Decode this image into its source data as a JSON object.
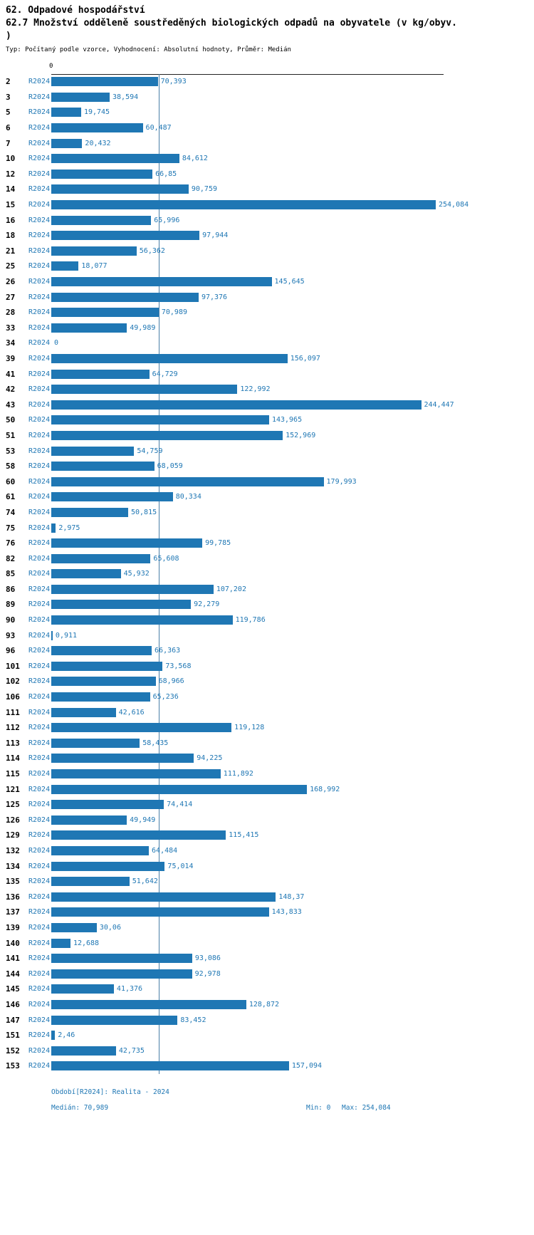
{
  "title": "62. Odpadové hospodářství",
  "subtitle_line1": "62.7 Množství odděleně soustředěných biologických odpadů na obyvatele (v kg/obyv.",
  "subtitle_line2": ")",
  "meta": "Typ: Počítaný podle vzorce, Vyhodnocení: Absolutní hodnoty, Průměr: Medián",
  "axis_zero_label": "0",
  "footer": {
    "period": "Období[R2024]: Realita - 2024",
    "median": "Medián: 70,989",
    "min": "Min: 0",
    "max": "Max: 254,084"
  },
  "chart_data": {
    "type": "bar",
    "orientation": "horizontal",
    "title": "62.7 Množství odděleně soustředěných biologických odpadů na obyvatele (v kg/obyv.)",
    "series_label": "R2024",
    "categories": [
      "2",
      "3",
      "5",
      "6",
      "7",
      "10",
      "12",
      "14",
      "15",
      "16",
      "18",
      "21",
      "25",
      "26",
      "27",
      "28",
      "33",
      "34",
      "39",
      "41",
      "42",
      "43",
      "50",
      "51",
      "53",
      "58",
      "60",
      "61",
      "74",
      "75",
      "76",
      "82",
      "85",
      "86",
      "89",
      "90",
      "93",
      "96",
      "101",
      "102",
      "106",
      "111",
      "112",
      "113",
      "114",
      "115",
      "121",
      "125",
      "126",
      "129",
      "132",
      "134",
      "135",
      "136",
      "137",
      "139",
      "140",
      "141",
      "144",
      "145",
      "146",
      "147",
      "151",
      "152",
      "153"
    ],
    "values": [
      70.393,
      38.594,
      19.745,
      60.487,
      20.432,
      84.612,
      66.85,
      90.759,
      254.084,
      65.996,
      97.944,
      56.362,
      18.077,
      145.645,
      97.376,
      70.989,
      49.989,
      0,
      156.097,
      64.729,
      122.992,
      244.447,
      143.965,
      152.969,
      54.759,
      68.059,
      179.993,
      80.334,
      50.815,
      2.975,
      99.785,
      65.608,
      45.932,
      107.202,
      92.279,
      119.786,
      0.911,
      66.363,
      73.568,
      68.966,
      65.236,
      42.616,
      119.128,
      58.435,
      94.225,
      111.892,
      168.992,
      74.414,
      49.949,
      115.415,
      64.484,
      75.014,
      51.642,
      148.37,
      143.833,
      30.06,
      12.688,
      93.086,
      92.978,
      41.376,
      128.872,
      83.452,
      2.46,
      42.735,
      157.094
    ],
    "value_labels": [
      "70,393",
      "38,594",
      "19,745",
      "60,487",
      "20,432",
      "84,612",
      "66,85",
      "90,759",
      "254,084",
      "65,996",
      "97,944",
      "56,362",
      "18,077",
      "145,645",
      "97,376",
      "70,989",
      "49,989",
      "0",
      "156,097",
      "64,729",
      "122,992",
      "244,447",
      "143,965",
      "152,969",
      "54,759",
      "68,059",
      "179,993",
      "80,334",
      "50,815",
      "2,975",
      "99,785",
      "65,608",
      "45,932",
      "107,202",
      "92,279",
      "119,786",
      "0,911",
      "66,363",
      "73,568",
      "68,966",
      "65,236",
      "42,616",
      "119,128",
      "58,435",
      "94,225",
      "111,892",
      "168,992",
      "74,414",
      "49,949",
      "115,415",
      "64,484",
      "75,014",
      "51,642",
      "148,37",
      "143,833",
      "30,06",
      "12,688",
      "93,086",
      "92,978",
      "41,376",
      "128,872",
      "83,452",
      "2,46",
      "42,735",
      "157,094"
    ],
    "xlim": [
      0,
      254.084
    ],
    "min": 0,
    "max": 254.084,
    "median": 70.989,
    "bar_color": "#1f77b4",
    "label_color": "#1f77b4",
    "median_line_color": "#4a7fa8",
    "grid": false,
    "legend_position": "none"
  }
}
